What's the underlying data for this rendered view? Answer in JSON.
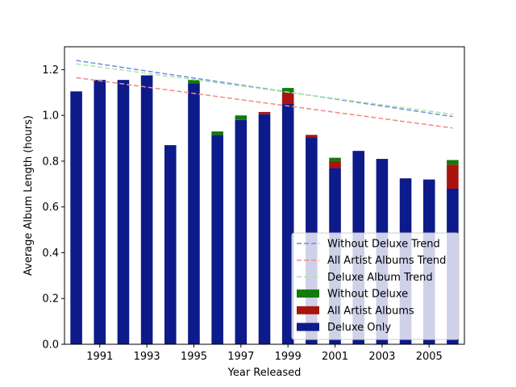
{
  "chart_data": {
    "type": "bar",
    "title": "",
    "xlabel": "Year Released",
    "ylabel": "Average Album Length (hours)",
    "ylim": [
      0,
      1.3
    ],
    "xlim": [
      1989.5,
      2006.5
    ],
    "yticks": [
      0.0,
      0.2,
      0.4,
      0.6,
      0.8,
      1.0,
      1.2
    ],
    "ytick_labels": [
      "0.0",
      "0.2",
      "0.4",
      "0.6",
      "0.8",
      "1.0",
      "1.2"
    ],
    "xticks": [
      1991,
      1993,
      1995,
      1997,
      1999,
      2001,
      2003,
      2005
    ],
    "xtick_labels": [
      "1991",
      "1993",
      "1995",
      "1997",
      "1999",
      "2001",
      "2003",
      "2005"
    ],
    "grid": false,
    "legend_position": "lower-right",
    "stacked": true,
    "categories": [
      1990,
      1991,
      1992,
      1993,
      1994,
      1995,
      1996,
      1997,
      1998,
      1999,
      2000,
      2001,
      2002,
      2003,
      2004,
      2005,
      2006
    ],
    "series": [
      {
        "name": "Deluxe Only",
        "color": "#0c1a8a",
        "values": [
          1.105,
          1.155,
          1.155,
          1.175,
          0.87,
          1.14,
          0.915,
          0.98,
          1.005,
          1.05,
          0.905,
          0.77,
          0.845,
          0.81,
          0.725,
          0.72,
          0.68
        ]
      },
      {
        "name": "All Artist Albums",
        "color": "#a8140e",
        "values": [
          0,
          0,
          0,
          0,
          0,
          0,
          0,
          0,
          0.01,
          0.05,
          0.01,
          0.03,
          0,
          0,
          0,
          0,
          0.105
        ]
      },
      {
        "name": "Without Deluxe",
        "color": "#137a0b",
        "values": [
          0,
          0,
          0,
          0,
          0,
          0.015,
          0.015,
          0.02,
          0,
          0.02,
          0,
          0.015,
          0,
          0,
          0,
          0,
          0.02
        ]
      }
    ],
    "trend_lines": [
      {
        "name": "Without Deluxe Trend",
        "color": "#6f8ce8",
        "start": [
          1990,
          1.24
        ],
        "end": [
          2006,
          0.995
        ]
      },
      {
        "name": "All Artist Albums Trend",
        "color": "#f08a85",
        "start": [
          1990,
          1.165
        ],
        "end": [
          2006,
          0.945
        ]
      },
      {
        "name": "Deluxe Album Trend",
        "color": "#a9e8a0",
        "start": [
          1990,
          1.225
        ],
        "end": [
          2006,
          1.005
        ]
      }
    ],
    "legend": [
      {
        "label": "Without Deluxe Trend",
        "kind": "line",
        "color": "#6f8ce8"
      },
      {
        "label": "All Artist Albums Trend",
        "kind": "line",
        "color": "#f08a85"
      },
      {
        "label": "Deluxe Album Trend",
        "kind": "line",
        "color": "#a9e8a0"
      },
      {
        "label": "Without Deluxe",
        "kind": "patch",
        "color": "#137a0b"
      },
      {
        "label": "All Artist Albums",
        "kind": "patch",
        "color": "#a8140e"
      },
      {
        "label": "Deluxe Only",
        "kind": "patch",
        "color": "#0c1a8a"
      }
    ]
  }
}
